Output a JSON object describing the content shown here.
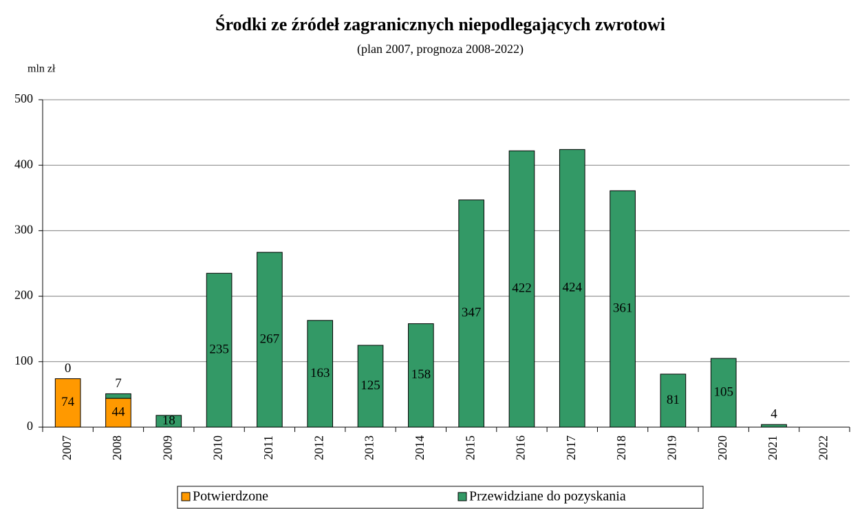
{
  "chart_data": {
    "type": "stacked_bar",
    "title": "Środki ze źródeł zagranicznych niepodlegających zwrotowi",
    "subtitle": "(plan 2007, prognoza 2008-2022)",
    "y_label": "mln zł",
    "categories": [
      "2007",
      "2008",
      "2009",
      "2010",
      "2011",
      "2012",
      "2013",
      "2014",
      "2015",
      "2016",
      "2017",
      "2018",
      "2019",
      "2020",
      "2021",
      "2022"
    ],
    "series": [
      {
        "name": "Potwierdzone",
        "color": "#ff9900",
        "values": [
          74,
          44,
          null,
          null,
          null,
          null,
          null,
          null,
          null,
          null,
          null,
          null,
          null,
          null,
          null,
          null
        ]
      },
      {
        "name": "Przewidziane do pozyskania",
        "color": "#339966",
        "values": [
          0,
          7,
          18,
          235,
          267,
          163,
          125,
          158,
          347,
          422,
          424,
          361,
          81,
          105,
          4,
          null
        ]
      }
    ],
    "ylim": [
      0,
      500
    ],
    "yticks": [
      0,
      100,
      200,
      300,
      400,
      500
    ],
    "grid": true,
    "legend": "bottom"
  }
}
